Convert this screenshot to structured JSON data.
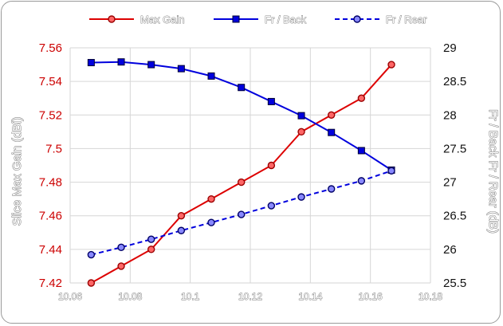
{
  "chart_data": {
    "type": "line",
    "xlabel": "",
    "x_ticks": [
      "10.06",
      "10.08",
      "10.1",
      "10.12",
      "10.14",
      "10.16",
      "10.18"
    ],
    "xlim": [
      10.06,
      10.18
    ],
    "left_axis": {
      "label": "Slice Max Gain (dBi)",
      "ylim": [
        7.42,
        7.56
      ],
      "ticks": [
        "7.42",
        "7.44",
        "7.46",
        "7.48",
        "7.5",
        "7.52",
        "7.54",
        "7.56"
      ]
    },
    "right_axis": {
      "label": "Fr / Back   Fr / Rear (dB)",
      "ylim": [
        25.5,
        29
      ],
      "ticks": [
        "25.5",
        "26",
        "26.5",
        "27",
        "27.5",
        "28",
        "28.5",
        "29"
      ]
    },
    "x": [
      10.067,
      10.077,
      10.087,
      10.097,
      10.107,
      10.117,
      10.127,
      10.137,
      10.147,
      10.157,
      10.167
    ],
    "series": [
      {
        "name": "Max Gain",
        "axis": "left",
        "color": "#dd0000",
        "style": "solid",
        "marker": "circle",
        "values": [
          7.42,
          7.43,
          7.44,
          7.46,
          7.47,
          7.48,
          7.49,
          7.51,
          7.52,
          7.53,
          7.55
        ]
      },
      {
        "name": "Fr / Back",
        "axis": "right",
        "color": "#0000dd",
        "style": "solid",
        "marker": "square",
        "values": [
          28.78,
          28.79,
          28.75,
          28.69,
          28.58,
          28.41,
          28.2,
          27.99,
          27.74,
          27.47,
          27.18
        ]
      },
      {
        "name": "Fr / Rear",
        "axis": "right",
        "color": "#0000dd",
        "style": "dashed",
        "marker": "circle",
        "values": [
          25.92,
          26.03,
          26.15,
          26.28,
          26.4,
          26.52,
          26.65,
          26.78,
          26.9,
          27.02,
          27.17
        ]
      }
    ],
    "grid": true,
    "legend_position": "top"
  }
}
